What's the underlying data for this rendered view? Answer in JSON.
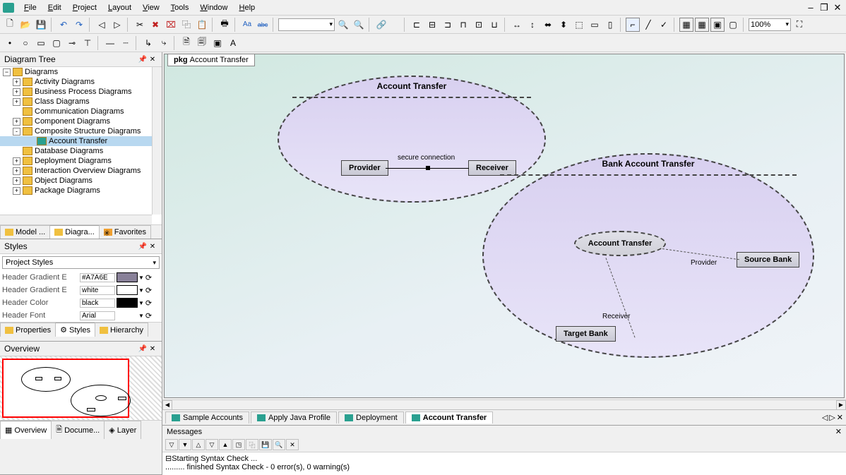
{
  "menu": {
    "items": [
      "File",
      "Edit",
      "Project",
      "Layout",
      "View",
      "Tools",
      "Window",
      "Help"
    ]
  },
  "zoom": "100%",
  "left": {
    "tree_title": "Diagram Tree",
    "tree": {
      "root": "Diagrams",
      "children": [
        {
          "label": "Activity Diagrams",
          "exp": "+"
        },
        {
          "label": "Business Process Diagrams",
          "exp": "+"
        },
        {
          "label": "Class Diagrams",
          "exp": "+"
        },
        {
          "label": "Communication Diagrams",
          "exp": null
        },
        {
          "label": "Component Diagrams",
          "exp": "+"
        },
        {
          "label": "Composite Structure Diagrams",
          "exp": "-",
          "children": [
            {
              "label": "Account Transfer",
              "selected": true
            }
          ]
        },
        {
          "label": "Database Diagrams",
          "exp": null
        },
        {
          "label": "Deployment Diagrams",
          "exp": "+"
        },
        {
          "label": "Interaction Overview Diagrams",
          "exp": "+"
        },
        {
          "label": "Object Diagrams",
          "exp": "+"
        },
        {
          "label": "Package Diagrams",
          "exp": "+"
        }
      ]
    },
    "tree_tabs": [
      "Model ...",
      "Diagra...",
      "Favorites"
    ],
    "styles_title": "Styles",
    "styles_combo": "Project Styles",
    "styles_rows": [
      {
        "label": "Header Gradient E",
        "val": "#A7A6E",
        "swatch": "#888098"
      },
      {
        "label": "Header Gradient E",
        "val": "white",
        "swatch": "#ffffff"
      },
      {
        "label": "Header Color",
        "val": "black",
        "swatch": "#000000"
      },
      {
        "label": "Header Font",
        "val": "Arial",
        "swatch": null
      }
    ],
    "styles_tabs": [
      "Properties",
      "Styles",
      "Hierarchy"
    ],
    "overview_title": "Overview",
    "overview_tabs": [
      "Overview",
      "Docume...",
      "Layer"
    ]
  },
  "canvas": {
    "pkg_tab": {
      "prefix": "pkg ",
      "name": "Account Transfer"
    },
    "collab1": {
      "title": "Account Transfer",
      "provider": "Provider",
      "receiver": "Receiver",
      "conn_label": "secure connection"
    },
    "collab2": {
      "title": "Bank Account Transfer",
      "inner": "Account Transfer",
      "source": "Source Bank",
      "target": "Target Bank",
      "role_prov": "Provider",
      "role_recv": "Receiver"
    }
  },
  "doc_tabs": [
    "Sample Accounts",
    "Apply Java Profile",
    "Deployment",
    "Account Transfer"
  ],
  "msgs": {
    "title": "Messages",
    "line1": "Starting Syntax Check ...",
    "line2": "......... finished Syntax Check - 0 error(s), 0 warning(s)"
  }
}
